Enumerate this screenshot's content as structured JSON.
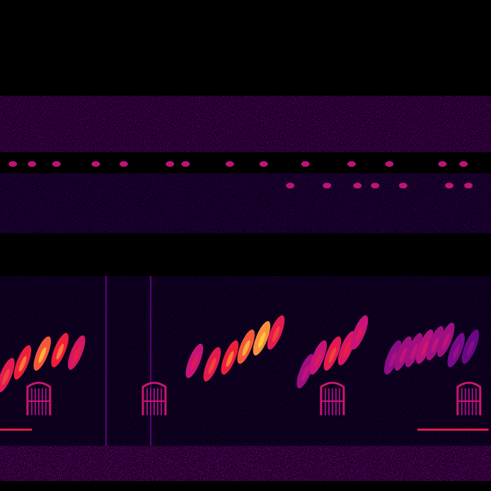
{
  "chart_data": {
    "type": "spectrogram",
    "tick_labels": false,
    "grid": false,
    "xlim": [
      0,
      1
    ],
    "ylim": [
      0,
      1
    ],
    "bands": {
      "y_low": [
        0.69,
        0.525,
        0.092,
        0.02
      ],
      "y_high": [
        0.805,
        0.647,
        0.438,
        0.092
      ],
      "intensity": [
        0.45,
        0.3,
        0.2,
        0.5
      ]
    },
    "notes": {
      "x": [
        0.012,
        0.046,
        0.086,
        0.122,
        0.156,
        0.396,
        0.432,
        0.468,
        0.501,
        0.533,
        0.562,
        0.622,
        0.648,
        0.677,
        0.706,
        0.732,
        0.8,
        0.821,
        0.843,
        0.865,
        0.886,
        0.908,
        0.929,
        0.958
      ],
      "y": [
        0.236,
        0.262,
        0.28,
        0.287,
        0.282,
        0.265,
        0.258,
        0.272,
        0.294,
        0.311,
        0.323,
        0.244,
        0.272,
        0.28,
        0.291,
        0.323,
        0.272,
        0.28,
        0.287,
        0.294,
        0.301,
        0.308,
        0.287,
        0.294
      ],
      "intensity": [
        0.8,
        0.85,
        0.9,
        0.85,
        0.75,
        0.7,
        0.8,
        0.85,
        0.9,
        0.95,
        0.8,
        0.6,
        0.7,
        0.8,
        0.75,
        0.7,
        0.55,
        0.6,
        0.6,
        0.65,
        0.6,
        0.6,
        0.5,
        0.45
      ]
    },
    "dots": {
      "x": [
        0.026,
        0.065,
        0.115,
        0.195,
        0.252,
        0.346,
        0.378,
        0.468,
        0.537,
        0.622,
        0.716,
        0.793,
        0.901,
        0.944,
        0.591,
        0.666,
        0.728,
        0.764,
        0.821,
        0.915,
        0.954
      ],
      "y": [
        0.666,
        0.666,
        0.666,
        0.666,
        0.666,
        0.666,
        0.666,
        0.666,
        0.666,
        0.666,
        0.666,
        0.666,
        0.666,
        0.666,
        0.622,
        0.622,
        0.622,
        0.622,
        0.622,
        0.622,
        0.622
      ]
    },
    "harmonic_stacks": {
      "x": [
        0.079,
        0.314,
        0.677,
        0.955
      ],
      "y": [
        0.186,
        0.186,
        0.186,
        0.186
      ]
    },
    "tones": {
      "x_start": [
        0,
        0.85
      ],
      "x_end": [
        0.065,
        0.995
      ],
      "y": [
        0.125,
        0.125
      ]
    },
    "clicks": {
      "x": [
        0.216,
        0.307
      ]
    }
  }
}
